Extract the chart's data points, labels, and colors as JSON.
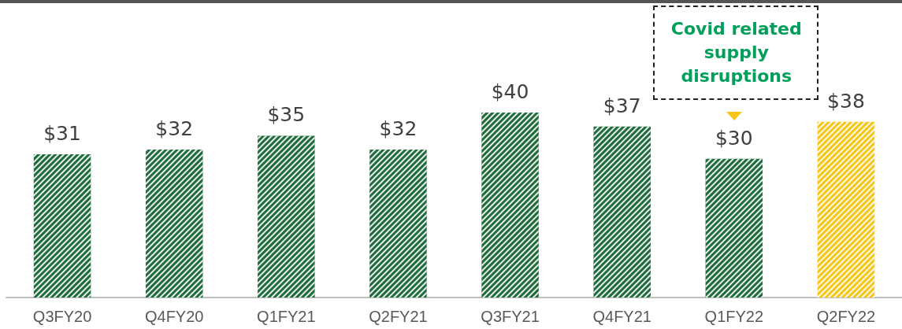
{
  "chart_data": {
    "type": "bar",
    "categories": [
      "Q3FY20",
      "Q4FY20",
      "Q1FY21",
      "Q2FY21",
      "Q3FY21",
      "Q4FY21",
      "Q1FY22",
      "Q2FY22"
    ],
    "values": [
      31,
      32,
      35,
      32,
      40,
      37,
      30,
      38
    ],
    "value_labels": [
      "$31",
      "$32",
      "$35",
      "$32",
      "$40",
      "$37",
      "$30",
      "$38"
    ],
    "colors": [
      "#1e6b3c",
      "#1e6b3c",
      "#1e6b3c",
      "#1e6b3c",
      "#1e6b3c",
      "#1e6b3c",
      "#1e6b3c",
      "#f5c518"
    ],
    "annotations": [
      "Covid related supply disruptions"
    ]
  }
}
